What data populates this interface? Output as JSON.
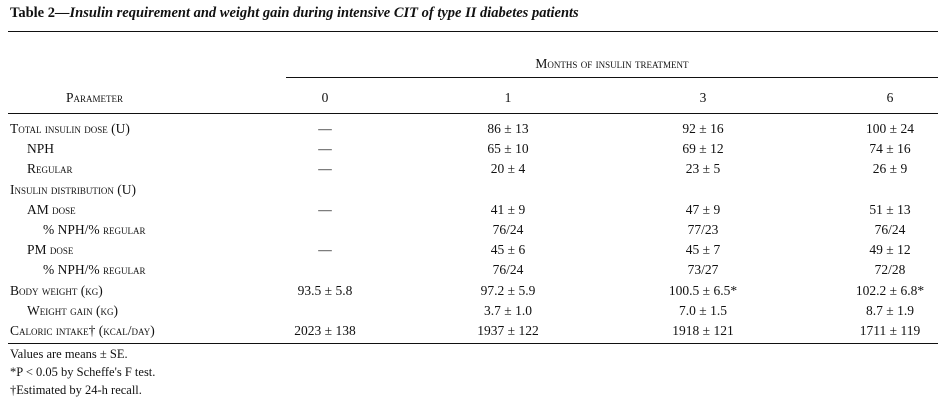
{
  "table": {
    "label": "Table 2",
    "title": "—Insulin requirement and weight gain during intensive CIT of type II diabetes patients",
    "group_header": "Months of insulin treatment",
    "parameter_header": "Parameter",
    "columns": [
      "0",
      "1",
      "3",
      "6"
    ],
    "rows": [
      {
        "label": "Total insulin dose (U)",
        "indent": 0,
        "values": [
          "—",
          "86 ± 13",
          "92 ± 16",
          "100 ± 24"
        ]
      },
      {
        "label": "NPH",
        "indent": 1,
        "values": [
          "—",
          "65 ± 10",
          "69 ± 12",
          "74 ± 16"
        ]
      },
      {
        "label": "Regular",
        "indent": 1,
        "values": [
          "—",
          "20 ± 4",
          "23 ± 5",
          "26 ± 9"
        ]
      },
      {
        "label": "Insulin distribution (U)",
        "indent": 0,
        "values": [
          "",
          "",
          "",
          ""
        ]
      },
      {
        "label": "AM dose",
        "indent": 1,
        "values": [
          "—",
          "41 ± 9",
          "47 ± 9",
          "51 ± 13"
        ]
      },
      {
        "label": "% NPH/% regular",
        "indent": 2,
        "values": [
          "",
          "76/24",
          "77/23",
          "76/24"
        ]
      },
      {
        "label": "PM dose",
        "indent": 1,
        "values": [
          "—",
          "45 ± 6",
          "45 ± 7",
          "49 ± 12"
        ]
      },
      {
        "label": "% NPH/% regular",
        "indent": 2,
        "values": [
          "",
          "76/24",
          "73/27",
          "72/28"
        ]
      },
      {
        "label": "Body weight (kg)",
        "indent": 0,
        "values": [
          "93.5 ± 5.8",
          "97.2 ± 5.9",
          "100.5 ± 6.5*",
          "102.2 ± 6.8*"
        ]
      },
      {
        "label": "Weight gain (kg)",
        "indent": 1,
        "values": [
          "",
          "3.7 ± 1.0",
          "7.0 ± 1.5",
          "8.7 ± 1.9"
        ]
      },
      {
        "label": "Caloric intake† (kcal/day)",
        "indent": 0,
        "values": [
          "2023 ± 138",
          "1937 ± 122",
          "1918 ± 121",
          "1711 ± 119"
        ]
      }
    ],
    "footnotes": [
      "Values are means ± SE.",
      "*P < 0.05 by Scheffe's F test.",
      "†Estimated by 24-h recall."
    ]
  }
}
